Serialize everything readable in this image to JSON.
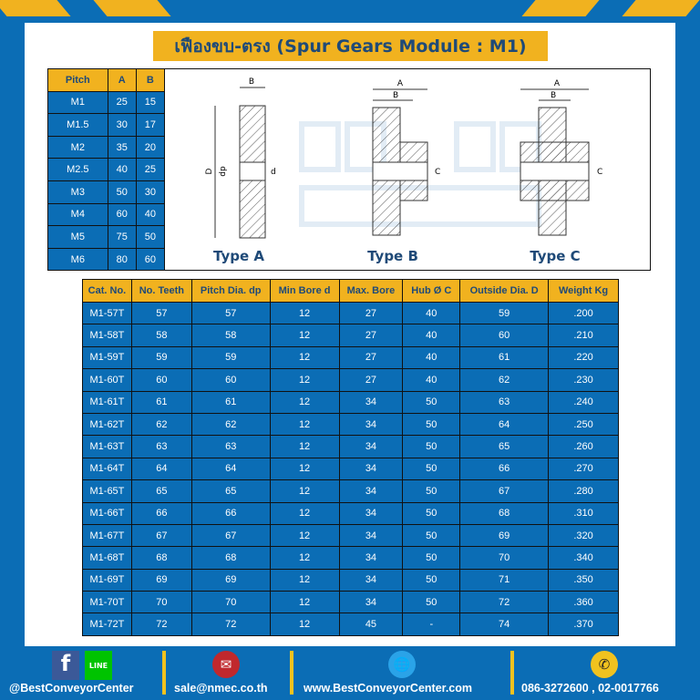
{
  "title": "เฟืองขบ-ตรง (Spur Gears Module : M1)",
  "colors": {
    "blue": "#0b6db5",
    "yellow": "#f1b21f",
    "title_text": "#1f4a78"
  },
  "pitch_table": {
    "headers": [
      "Pitch",
      "A",
      "B"
    ],
    "rows": [
      [
        "M1",
        "25",
        "15"
      ],
      [
        "M1.5",
        "30",
        "17"
      ],
      [
        "M2",
        "35",
        "20"
      ],
      [
        "M2.5",
        "40",
        "25"
      ],
      [
        "M3",
        "50",
        "30"
      ],
      [
        "M4",
        "60",
        "40"
      ],
      [
        "M5",
        "75",
        "50"
      ],
      [
        "M6",
        "80",
        "60"
      ]
    ]
  },
  "diagrams": {
    "labels": {
      "a": "A",
      "b": "B",
      "c": "C",
      "d": "d",
      "D": "D",
      "dp": "dp"
    },
    "types": [
      "Type A",
      "Type B",
      "Type C"
    ],
    "watermark": "BEST CONVEYOR CENTER"
  },
  "main_table": {
    "headers": [
      "Cat. No.",
      "No. Teeth",
      "Pitch Dia. dp",
      "Min Bore d",
      "Max. Bore",
      "Hub Ø C",
      "Outside Dia. D",
      "Weight Kg"
    ],
    "rows": [
      [
        "M1-57T",
        "57",
        "57",
        "12",
        "27",
        "40",
        "59",
        ".200"
      ],
      [
        "M1-58T",
        "58",
        "58",
        "12",
        "27",
        "40",
        "60",
        ".210"
      ],
      [
        "M1-59T",
        "59",
        "59",
        "12",
        "27",
        "40",
        "61",
        ".220"
      ],
      [
        "M1-60T",
        "60",
        "60",
        "12",
        "27",
        "40",
        "62",
        ".230"
      ],
      [
        "M1-61T",
        "61",
        "61",
        "12",
        "34",
        "50",
        "63",
        ".240"
      ],
      [
        "M1-62T",
        "62",
        "62",
        "12",
        "34",
        "50",
        "64",
        ".250"
      ],
      [
        "M1-63T",
        "63",
        "63",
        "12",
        "34",
        "50",
        "65",
        ".260"
      ],
      [
        "M1-64T",
        "64",
        "64",
        "12",
        "34",
        "50",
        "66",
        ".270"
      ],
      [
        "M1-65T",
        "65",
        "65",
        "12",
        "34",
        "50",
        "67",
        ".280"
      ],
      [
        "M1-66T",
        "66",
        "66",
        "12",
        "34",
        "50",
        "68",
        ".310"
      ],
      [
        "M1-67T",
        "67",
        "67",
        "12",
        "34",
        "50",
        "69",
        ".320"
      ],
      [
        "M1-68T",
        "68",
        "68",
        "12",
        "34",
        "50",
        "70",
        ".340"
      ],
      [
        "M1-69T",
        "69",
        "69",
        "12",
        "34",
        "50",
        "71",
        ".350"
      ],
      [
        "M1-70T",
        "70",
        "70",
        "12",
        "34",
        "50",
        "72",
        ".360"
      ],
      [
        "M1-72T",
        "72",
        "72",
        "12",
        "45",
        "-",
        "74",
        ".370"
      ]
    ]
  },
  "footer": {
    "social": "@BestConveyorCenter",
    "email": "sale@nmec.co.th",
    "website": "www.BestConveyorCenter.com",
    "phone": "086-3272600 , 02-0017766",
    "line_label": "LINE",
    "fb_label": "f",
    "icons": [
      "facebook-icon",
      "line-icon",
      "email-icon",
      "globe-icon",
      "phone-icon"
    ]
  }
}
